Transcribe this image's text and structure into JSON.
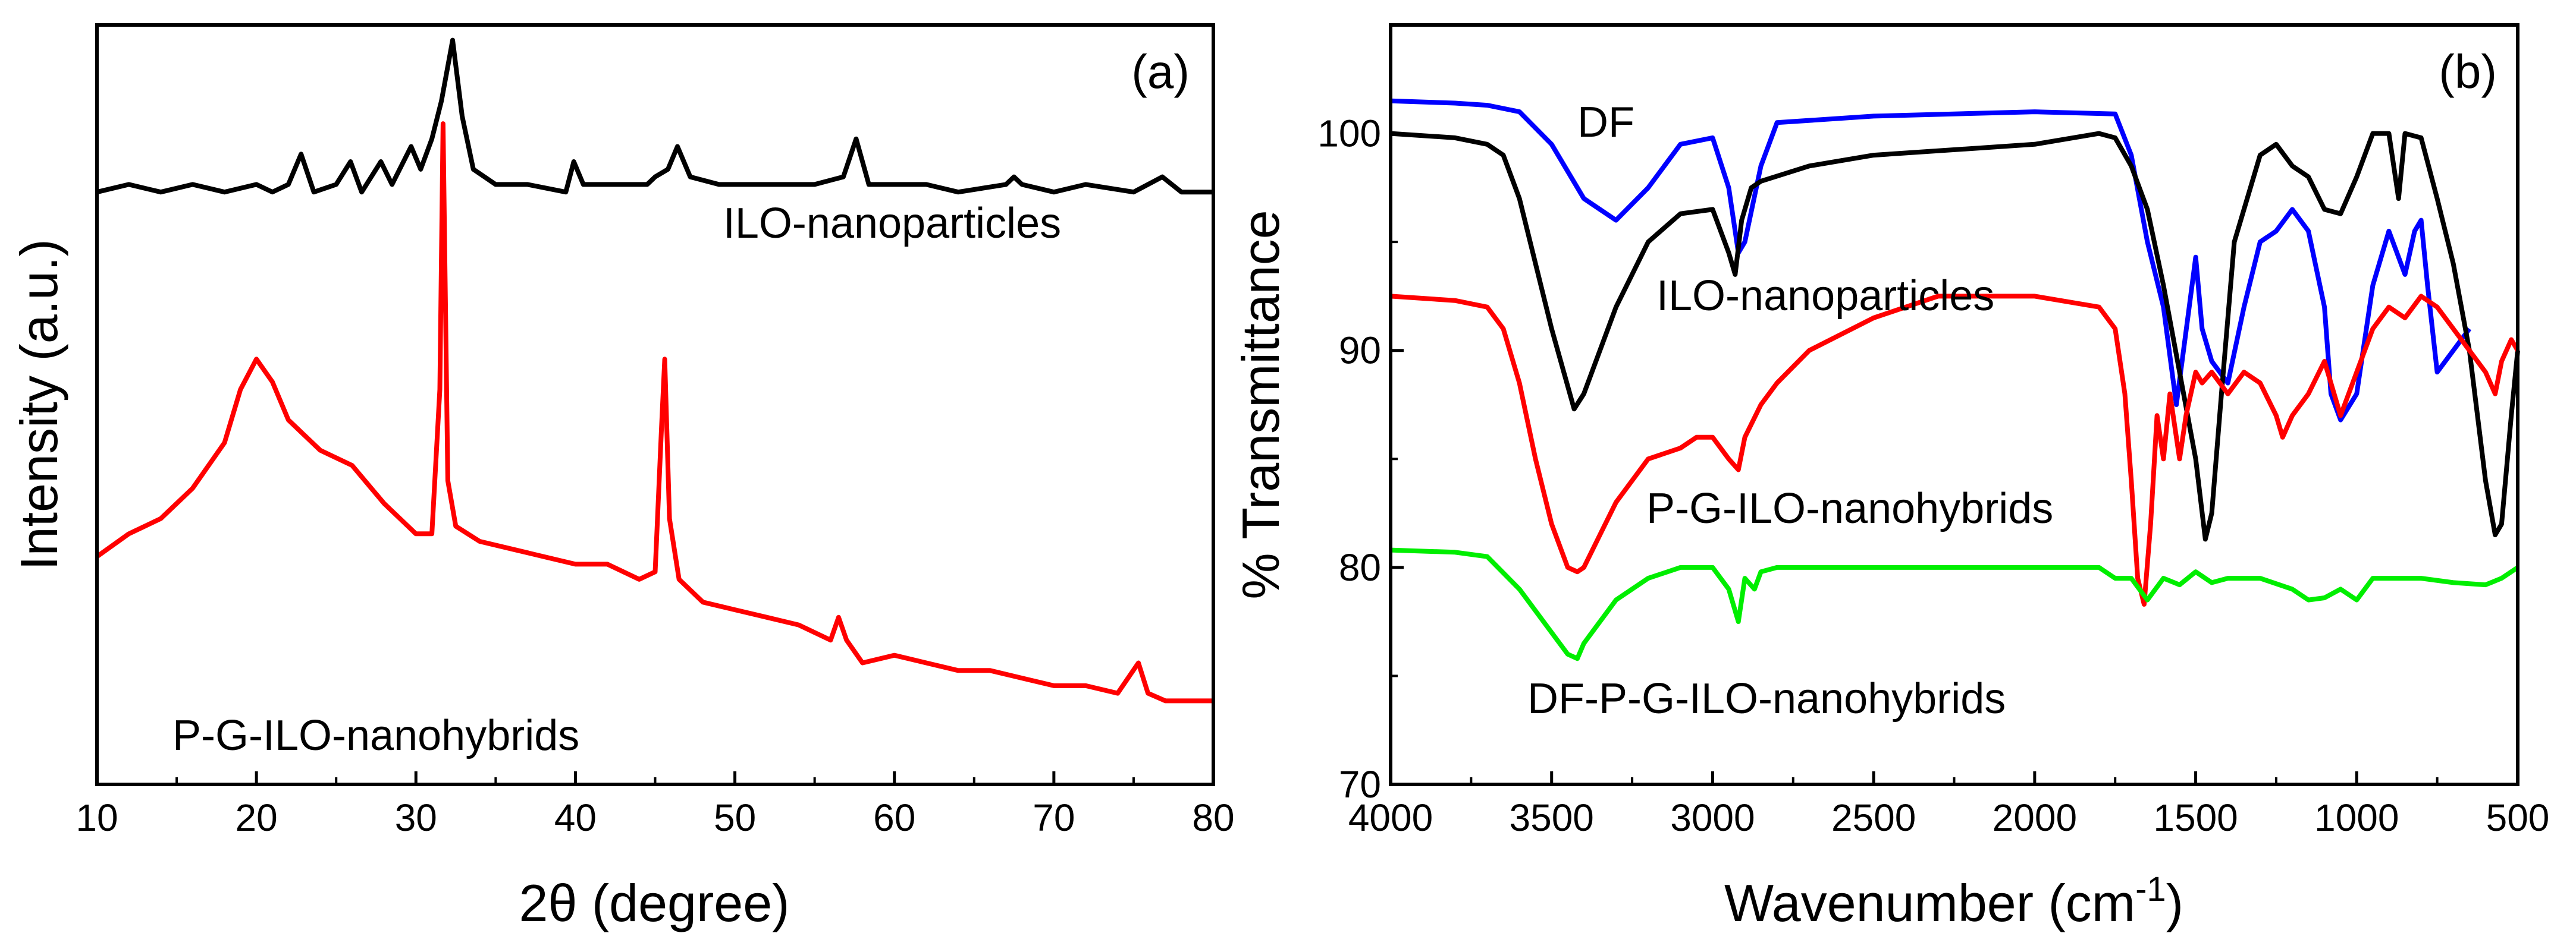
{
  "chart_data": [
    {
      "panel_label": "(a)",
      "type": "line",
      "xlabel": "2θ  (degree)",
      "ylabel": "Intensity (a.u.)",
      "xlim": [
        10,
        80
      ],
      "ylim": [
        0,
        100
      ],
      "xticks": [
        "10",
        "20",
        "30",
        "40",
        "50",
        "60",
        "70",
        "80"
      ],
      "yticks_shown": false,
      "series": [
        {
          "name": "ILO-nanoparticles",
          "label": "ILO-nanoparticles",
          "color": "#000000",
          "x": [
            10,
            12,
            14,
            16,
            18,
            20,
            21,
            22,
            22.8,
            23.6,
            25,
            25.9,
            26.6,
            27.8,
            28.5,
            29.7,
            30.3,
            31,
            31.6,
            32.3,
            32.9,
            33.6,
            35,
            37,
            39.4,
            39.9,
            40.5,
            43,
            44.5,
            45,
            45.8,
            46.4,
            47.2,
            49,
            52,
            55,
            56.8,
            57.6,
            58.4,
            60,
            62,
            64,
            67,
            67.5,
            68,
            70,
            72,
            75,
            76.8,
            78,
            80
          ],
          "y": [
            78,
            79,
            78,
            79,
            78,
            79,
            78,
            79,
            83,
            78,
            79,
            82,
            78,
            82,
            79,
            84,
            81,
            85,
            90,
            98,
            88,
            81,
            79,
            79,
            78,
            82,
            79,
            79,
            79,
            80,
            81,
            84,
            80,
            79,
            79,
            79,
            80,
            85,
            79,
            79,
            79,
            78,
            79,
            80,
            79,
            78,
            79,
            78,
            80,
            78,
            78
          ]
        },
        {
          "name": "P-G-ILO-nanohybrids",
          "label": "P-G-ILO-nanohybrids",
          "color": "#ff0000",
          "x": [
            10,
            12,
            14,
            16,
            18,
            19,
            20,
            21,
            22,
            24,
            26,
            28,
            30,
            31,
            31.5,
            31.7,
            32,
            32.5,
            34,
            36,
            38,
            40,
            42,
            44,
            45,
            45.4,
            45.6,
            45.9,
            46.5,
            48,
            50,
            52,
            54,
            56,
            56.5,
            57,
            58,
            60,
            62,
            64,
            66,
            68,
            70,
            72,
            74,
            75.3,
            75.9,
            77,
            80
          ],
          "y": [
            30,
            33,
            35,
            39,
            45,
            52,
            56,
            53,
            48,
            44,
            42,
            37,
            33,
            33,
            52,
            87,
            40,
            34,
            32,
            31,
            30,
            29,
            29,
            27,
            28,
            47,
            56,
            35,
            27,
            24,
            23,
            22,
            21,
            19,
            22,
            19,
            16,
            17,
            16,
            15,
            15,
            14,
            13,
            13,
            12,
            16,
            12,
            11,
            11
          ]
        }
      ]
    },
    {
      "panel_label": "(b)",
      "type": "line",
      "xlabel": "Wavenumber (cm",
      "xlabel_sup": "-1",
      "xlabel_end": ")",
      "ylabel": "% Transmittance",
      "xlim": [
        4000,
        500
      ],
      "ylim": [
        70,
        105
      ],
      "xticks": [
        "4000",
        "3500",
        "3000",
        "2500",
        "2000",
        "1500",
        "1000",
        "500"
      ],
      "yticks": [
        "70",
        "80",
        "90",
        "100"
      ],
      "series": [
        {
          "name": "DF",
          "label": "DF",
          "color": "#0000ff",
          "x": [
            4000,
            3800,
            3700,
            3600,
            3500,
            3400,
            3300,
            3200,
            3100,
            3000,
            2950,
            2920,
            2900,
            2850,
            2800,
            2500,
            2000,
            1750,
            1700,
            1650,
            1600,
            1560,
            1520,
            1500,
            1480,
            1450,
            1400,
            1350,
            1300,
            1250,
            1200,
            1150,
            1100,
            1080,
            1050,
            1000,
            950,
            900,
            850,
            820,
            800,
            780,
            750,
            700,
            650
          ],
          "y": [
            101.5,
            101.4,
            101.3,
            101.0,
            99.5,
            97.0,
            96.0,
            97.5,
            99.5,
            99.8,
            97.5,
            94.5,
            95.0,
            98.5,
            100.5,
            100.8,
            101.0,
            100.9,
            99.0,
            95.0,
            92.0,
            87.5,
            92.0,
            94.3,
            91.0,
            89.5,
            88.5,
            92.0,
            95.0,
            95.5,
            96.5,
            95.5,
            92.0,
            88.0,
            86.8,
            88.0,
            93.0,
            95.5,
            93.5,
            95.5,
            96.0,
            93.0,
            89.0,
            90.0,
            91.0
          ]
        },
        {
          "name": "ILO-nanoparticles",
          "label": "ILO-nanoparticles",
          "color": "#000000",
          "x": [
            4000,
            3800,
            3700,
            3650,
            3600,
            3500,
            3430,
            3400,
            3300,
            3200,
            3100,
            3000,
            2950,
            2930,
            2910,
            2880,
            2850,
            2700,
            2500,
            2000,
            1800,
            1750,
            1700,
            1650,
            1600,
            1550,
            1500,
            1470,
            1450,
            1420,
            1380,
            1300,
            1250,
            1200,
            1150,
            1100,
            1050,
            1000,
            950,
            900,
            870,
            850,
            800,
            750,
            700,
            650,
            600,
            570,
            550,
            520,
            500
          ],
          "y": [
            100,
            99.8,
            99.5,
            99.0,
            97.0,
            91.0,
            87.3,
            88.0,
            92.0,
            95.0,
            96.3,
            96.5,
            94.5,
            93.5,
            96.0,
            97.5,
            97.8,
            98.5,
            99.0,
            99.5,
            100.0,
            99.8,
            98.5,
            96.5,
            93.0,
            89.0,
            85.0,
            81.3,
            82.5,
            88.0,
            95.0,
            99.0,
            99.5,
            98.5,
            98.0,
            96.5,
            96.3,
            98.0,
            100.0,
            100.0,
            97.0,
            100.0,
            99.8,
            97.0,
            94.0,
            90.0,
            84.0,
            81.5,
            82.0,
            87.0,
            90.0
          ]
        },
        {
          "name": "P-G-ILO-nanohybrids",
          "label": "P-G-ILO-nanohybrids",
          "color": "#ff0000",
          "x": [
            4000,
            3800,
            3700,
            3650,
            3600,
            3550,
            3500,
            3450,
            3420,
            3400,
            3350,
            3300,
            3200,
            3100,
            3050,
            3000,
            2950,
            2920,
            2900,
            2850,
            2800,
            2700,
            2500,
            2300,
            2000,
            1800,
            1750,
            1720,
            1700,
            1680,
            1660,
            1640,
            1620,
            1600,
            1580,
            1550,
            1530,
            1500,
            1480,
            1450,
            1400,
            1350,
            1300,
            1250,
            1230,
            1200,
            1150,
            1100,
            1050,
            1000,
            950,
            900,
            850,
            800,
            750,
            700,
            650,
            600,
            570,
            550,
            520,
            500
          ],
          "y": [
            92.5,
            92.3,
            92.0,
            91.0,
            88.5,
            85.0,
            82.0,
            80.0,
            79.8,
            80.0,
            81.5,
            83.0,
            85.0,
            85.5,
            86.0,
            86.0,
            85.0,
            84.5,
            86.0,
            87.5,
            88.5,
            90.0,
            91.5,
            92.5,
            92.5,
            92.0,
            91.0,
            88.0,
            84.0,
            79.5,
            78.3,
            82.0,
            87.0,
            85.0,
            88.0,
            85.0,
            87.0,
            89.0,
            88.5,
            89.0,
            88.0,
            89.0,
            88.5,
            87.0,
            86.0,
            87.0,
            88.0,
            89.5,
            87.0,
            89.0,
            91.0,
            92.0,
            91.5,
            92.5,
            92.0,
            91.0,
            90.0,
            89.0,
            88.0,
            89.5,
            90.5,
            90.0
          ]
        },
        {
          "name": "DF-P-G-ILO-nanohybrids",
          "label": "DF-P-G-ILO-nanohybrids",
          "color": "#00ee00",
          "x": [
            4000,
            3800,
            3700,
            3600,
            3500,
            3450,
            3420,
            3400,
            3300,
            3200,
            3100,
            3000,
            2950,
            2920,
            2900,
            2870,
            2850,
            2800,
            2700,
            2500,
            2000,
            1800,
            1750,
            1700,
            1650,
            1600,
            1550,
            1500,
            1450,
            1400,
            1300,
            1200,
            1150,
            1100,
            1050,
            1000,
            950,
            900,
            800,
            700,
            600,
            550,
            500
          ],
          "y": [
            80.8,
            80.7,
            80.5,
            79.0,
            77.0,
            76.0,
            75.8,
            76.5,
            78.5,
            79.5,
            80.0,
            80.0,
            79.0,
            77.5,
            79.5,
            79.0,
            79.8,
            80.0,
            80.0,
            80.0,
            80.0,
            80.0,
            79.5,
            79.5,
            78.5,
            79.5,
            79.2,
            79.8,
            79.3,
            79.5,
            79.5,
            79.0,
            78.5,
            78.6,
            79.0,
            78.5,
            79.5,
            79.5,
            79.5,
            79.3,
            79.2,
            79.5,
            80.0
          ]
        }
      ]
    }
  ]
}
